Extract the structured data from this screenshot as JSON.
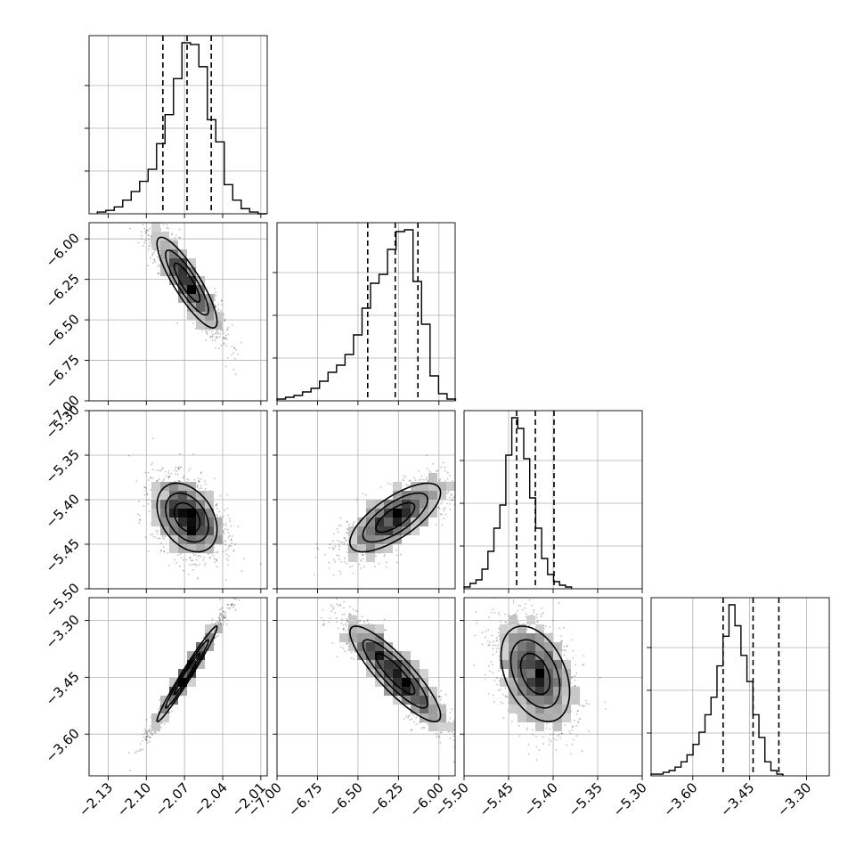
{
  "chart_data": {
    "type": "corner",
    "colors": {
      "line": "#000000",
      "grid": "#b0b0b0",
      "points": "#808080"
    },
    "grid": true,
    "parameters": [
      {
        "range": [
          -2.145,
          -2.005
        ],
        "ticks": [
          -2.13,
          -2.1,
          -2.07,
          -2.04,
          -2.01
        ],
        "tick_labels": [
          "−2.13",
          "−2.10",
          "−2.07",
          "−2.04",
          "−2.01"
        ],
        "quantiles": [
          -2.087,
          -2.068,
          -2.049
        ],
        "hist": {
          "edges_from": -2.1385,
          "bin_width": 0.00665,
          "counts": [
            1,
            2,
            4,
            8,
            13,
            19,
            26,
            41,
            58,
            79,
            100,
            99,
            86,
            55,
            42,
            17,
            8,
            3,
            1,
            0
          ]
        }
      },
      {
        "range": [
          -7.0,
          -5.9
        ],
        "ticks": [
          -7.0,
          -6.75,
          -6.5,
          -6.25,
          -6.0
        ],
        "tick_labels": [
          "−7.00",
          "−6.75",
          "−6.50",
          "−6.25",
          "−6.00"
        ],
        "quantiles": [
          -6.44,
          -6.27,
          -6.13
        ],
        "hist": {
          "edges_from": -7.0,
          "bin_width": 0.0525,
          "counts": [
            1,
            2,
            3,
            5,
            7,
            11,
            16,
            20,
            26,
            37,
            52,
            66,
            71,
            85,
            95,
            96,
            67,
            43,
            14,
            4,
            1
          ]
        }
      },
      {
        "range": [
          -5.5,
          -5.3
        ],
        "ticks": [
          -5.5,
          -5.45,
          -5.4,
          -5.35,
          -5.3
        ],
        "tick_labels": [
          "−5.50",
          "−5.45",
          "−5.40",
          "−5.35",
          "−5.30"
        ],
        "quantiles": [
          -5.441,
          -5.42,
          -5.399
        ],
        "hist": {
          "edges_from": -5.5,
          "bin_width": 0.0067,
          "counts": [
            1,
            3,
            5,
            11,
            21,
            34,
            47,
            75,
            96,
            90,
            73,
            51,
            34,
            17,
            8,
            4,
            2,
            1
          ]
        }
      },
      {
        "range": [
          -3.71,
          -3.24
        ],
        "ticks": [
          -3.6,
          -3.45,
          -3.3
        ],
        "tick_labels": [
          "−3.60",
          "−3.45",
          "−3.30"
        ],
        "quantiles": [
          -3.52,
          -3.441,
          -3.373
        ],
        "hist": {
          "edges_from": -3.71,
          "bin_width": 0.0158,
          "counts": [
            1,
            1,
            2,
            3,
            5,
            8,
            12,
            18,
            25,
            35,
            45,
            63,
            80,
            98,
            86,
            69,
            54,
            35,
            22,
            8,
            3,
            1
          ]
        }
      }
    ],
    "correlations": [
      {
        "col": 0,
        "row": 1,
        "mean": [
          -2.068,
          -6.27
        ],
        "sx": 0.0135,
        "sy": 0.16,
        "rho": -0.86
      },
      {
        "col": 0,
        "row": 2,
        "mean": [
          -2.068,
          -5.42
        ],
        "sx": 0.0135,
        "sy": 0.022,
        "rho": -0.35
      },
      {
        "col": 1,
        "row": 2,
        "mean": [
          -6.27,
          -5.42
        ],
        "sx": 0.16,
        "sy": 0.022,
        "rho": 0.72
      },
      {
        "col": 0,
        "row": 3,
        "mean": [
          -2.068,
          -3.441
        ],
        "sx": 0.0135,
        "sy": 0.072,
        "rho": 0.98
      },
      {
        "col": 1,
        "row": 3,
        "mean": [
          -6.27,
          -3.441
        ],
        "sx": 0.16,
        "sy": 0.072,
        "rho": -0.87
      },
      {
        "col": 2,
        "row": 3,
        "mean": [
          -5.42,
          -3.441
        ],
        "sx": 0.022,
        "sy": 0.072,
        "rho": -0.38
      }
    ]
  }
}
